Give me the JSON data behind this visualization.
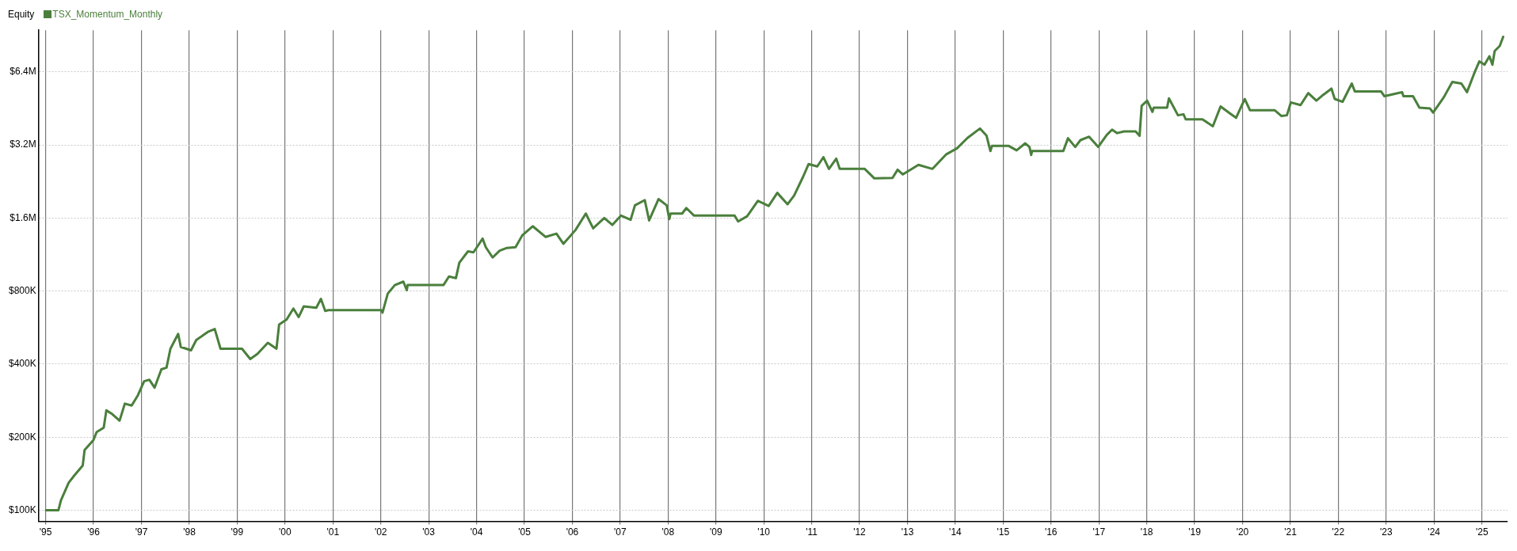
{
  "chart_data": {
    "type": "line",
    "ylabel": "Equity",
    "legend": "top left",
    "grid": true,
    "log": "y",
    "marker": "none",
    "line_style": "solid",
    "xlim": [
      "1994-11-08",
      "2025-07-15"
    ],
    "xticks": [
      {
        "value": "1995",
        "label": "'95"
      },
      {
        "value": "1996",
        "label": "'96"
      },
      {
        "value": "1997",
        "label": "'97"
      },
      {
        "value": "1998",
        "label": "'98"
      },
      {
        "value": "1999",
        "label": "'99"
      },
      {
        "value": "2000",
        "label": "'00"
      },
      {
        "value": "2001",
        "label": "'01"
      },
      {
        "value": "2002",
        "label": "'02"
      },
      {
        "value": "2003",
        "label": "'03"
      },
      {
        "value": "2004",
        "label": "'04"
      },
      {
        "value": "2005",
        "label": "'05"
      },
      {
        "value": "2006",
        "label": "'06"
      },
      {
        "value": "2007",
        "label": "'07"
      },
      {
        "value": "2008",
        "label": "'08"
      },
      {
        "value": "2009",
        "label": "'09"
      },
      {
        "value": "2010",
        "label": "'10"
      },
      {
        "value": "2011",
        "label": "'11"
      },
      {
        "value": "2012",
        "label": "'12"
      },
      {
        "value": "2013",
        "label": "'13"
      },
      {
        "value": "2014",
        "label": "'14"
      },
      {
        "value": "2015",
        "label": "'15"
      },
      {
        "value": "2016",
        "label": "'16"
      },
      {
        "value": "2017",
        "label": "'17"
      },
      {
        "value": "2018",
        "label": "'18"
      },
      {
        "value": "2019",
        "label": "'19"
      },
      {
        "value": "2020",
        "label": "'20"
      },
      {
        "value": "2021",
        "label": "'21"
      },
      {
        "value": "2022",
        "label": "'22"
      },
      {
        "value": "2023",
        "label": "'23"
      },
      {
        "value": "2024",
        "label": "'24"
      },
      {
        "value": "2025",
        "label": "'25"
      }
    ],
    "ylim": [
      90000,
      9500000
    ],
    "yticks": [
      {
        "value": 100000,
        "label": "$100K"
      },
      {
        "value": 200000,
        "label": "$200K"
      },
      {
        "value": 400000,
        "label": "$400K"
      },
      {
        "value": 800000,
        "label": "$800K"
      },
      {
        "value": 1600000,
        "label": "$1.6M"
      },
      {
        "value": 3200000,
        "label": "$3.2M"
      },
      {
        "value": 6400000,
        "label": "$6.4M"
      }
    ],
    "series": [
      {
        "name": "TSX_Momentum_Monthly",
        "color": "#4a7f3c",
        "x": [
          "1995-01-04",
          "1995-04-08",
          "1995-04-28",
          "1995-06-26",
          "1995-08-07",
          "1995-10-11",
          "1995-10-25",
          "1996-01-01",
          "1996-01-25",
          "1996-03-19",
          "1996-04-08",
          "1996-05-23",
          "1996-07-18",
          "1996-08-27",
          "1996-10-18",
          "1996-12-05",
          "1997-01-21",
          "1997-03-02",
          "1997-04-11",
          "1997-06-02",
          "1997-07-11",
          "1997-08-10",
          "1997-10-08",
          "1997-10-28",
          "1998-01-14",
          "1998-02-23",
          "1998-05-27",
          "1998-07-14",
          "1998-08-27",
          "1999-02-07",
          "1999-04-11",
          "1999-06-05",
          "1999-08-23",
          "1999-10-28",
          "1999-11-17",
          "2000-01-14",
          "2000-03-05",
          "2000-04-14",
          "2000-05-23",
          "2000-08-27",
          "2000-10-01",
          "2000-11-03",
          "2000-11-27",
          "2002-01-04",
          "2002-01-14",
          "2002-02-23",
          "2002-04-18",
          "2002-06-22",
          "2002-07-18",
          "2002-07-25",
          "2003-04-24",
          "2003-06-05",
          "2003-07-28",
          "2003-08-23",
          "2003-10-28",
          "2003-12-09",
          "2004-02-17",
          "2004-03-12",
          "2004-05-03",
          "2004-06-26",
          "2004-08-20",
          "2004-10-25",
          "2004-12-16",
          "2005-03-05",
          "2005-06-12",
          "2005-09-02",
          "2005-10-25",
          "2006-01-25",
          "2006-04-14",
          "2006-06-09",
          "2006-09-02",
          "2006-11-03",
          "2007-01-08",
          "2007-03-22",
          "2007-04-24",
          "2007-07-08",
          "2007-08-10",
          "2007-10-21",
          "2007-12-22",
          "2008-01-11",
          "2008-01-21",
          "2008-04-18",
          "2008-05-20",
          "2008-07-18",
          "2009-05-23",
          "2009-06-19",
          "2009-08-27",
          "2009-11-17",
          "2010-02-07",
          "2010-04-14",
          "2010-07-01",
          "2010-08-20",
          "2010-10-28",
          "2010-12-09",
          "2011-02-13",
          "2011-04-01",
          "2011-05-13",
          "2011-07-08",
          "2011-08-03",
          "2012-02-10",
          "2012-04-24",
          "2012-09-09",
          "2012-10-18",
          "2012-11-27",
          "2013-03-26",
          "2013-07-11",
          "2013-10-25",
          "2014-01-14",
          "2014-04-04",
          "2014-07-08",
          "2014-08-27",
          "2014-09-26",
          "2014-10-08",
          "2015-02-13",
          "2015-04-14",
          "2015-06-19",
          "2015-07-21",
          "2015-08-03",
          "2015-08-10",
          "2016-04-04",
          "2016-05-10",
          "2016-07-04",
          "2016-08-13",
          "2016-10-18",
          "2016-12-26",
          "2017-03-02",
          "2017-04-11",
          "2017-05-20",
          "2017-07-11",
          "2017-10-08",
          "2017-11-07",
          "2017-11-23",
          "2018-01-04",
          "2018-02-13",
          "2018-02-23",
          "2018-06-05",
          "2018-06-19",
          "2018-08-27",
          "2018-10-08",
          "2018-10-25",
          "2019-03-02",
          "2019-05-20",
          "2019-07-18",
          "2019-09-19",
          "2019-11-13",
          "2020-01-18",
          "2020-02-27",
          "2020-09-02",
          "2020-10-25",
          "2020-12-05",
          "2021-01-04",
          "2021-03-19",
          "2021-05-17",
          "2021-07-18",
          "2021-09-09",
          "2021-11-10",
          "2021-12-05",
          "2022-02-03",
          "2022-04-14",
          "2022-05-07",
          "2022-11-23",
          "2022-12-19",
          "2023-03-09",
          "2023-05-03",
          "2023-05-13",
          "2023-07-25",
          "2023-09-12",
          "2023-12-02",
          "2023-12-26",
          "2024-03-16",
          "2024-05-20",
          "2024-07-28",
          "2024-09-09",
          "2024-11-03",
          "2024-12-12",
          "2025-01-21",
          "2025-02-27",
          "2025-03-22",
          "2025-04-08",
          "2025-05-17",
          "2025-06-12"
        ],
        "values": [
          100000,
          100000,
          110000,
          130000,
          139000,
          153000,
          177000,
          195000,
          210000,
          219000,
          258000,
          249000,
          234000,
          275000,
          270000,
          298000,
          340000,
          345000,
          320000,
          381000,
          387000,
          463000,
          533000,
          471000,
          456000,
          503000,
          545000,
          558000,
          463000,
          463000,
          420000,
          441000,
          490000,
          463000,
          582000,
          611000,
          678000,
          625000,
          692000,
          683000,
          743000,
          663000,
          668000,
          668000,
          652000,
          781000,
          847000,
          875000,
          807000,
          847000,
          847000,
          919000,
          904000,
          1047000,
          1166000,
          1155000,
          1316000,
          1213000,
          1100000,
          1174000,
          1205000,
          1213000,
          1359000,
          1480000,
          1337000,
          1380000,
          1253000,
          1427000,
          1669000,
          1451000,
          1600000,
          1499000,
          1637000,
          1573000,
          1805000,
          1896000,
          1564000,
          1915000,
          1805000,
          1584000,
          1669000,
          1669000,
          1759000,
          1637000,
          1637000,
          1549000,
          1627000,
          1883000,
          1793000,
          2031000,
          1823000,
          1978000,
          2367000,
          2670000,
          2610000,
          2850000,
          2550000,
          2810000,
          2550000,
          2550000,
          2330000,
          2340000,
          2530000,
          2420000,
          2650000,
          2550000,
          2930000,
          3100000,
          3420000,
          3740000,
          3500000,
          3020000,
          3170000,
          3170000,
          3040000,
          3250000,
          3140000,
          2910000,
          3020000,
          3020000,
          3410000,
          3140000,
          3350000,
          3460000,
          3140000,
          3520000,
          3700000,
          3580000,
          3640000,
          3640000,
          3490000,
          4640000,
          4870000,
          4380000,
          4560000,
          4560000,
          4980000,
          4240000,
          4280000,
          4080000,
          4080000,
          3820000,
          4610000,
          4350000,
          4140000,
          4950000,
          4450000,
          4450000,
          4210000,
          4240000,
          4790000,
          4670000,
          5230000,
          4870000,
          5150000,
          5460000,
          4950000,
          4820000,
          5730000,
          5320000,
          5320000,
          5080000,
          5200000,
          5280000,
          5080000,
          5080000,
          4560000,
          4520000,
          4350000,
          5030000,
          5820000,
          5730000,
          5280000,
          6310000,
          7070000,
          6850000,
          7420000,
          6850000,
          7800000,
          8190000,
          8930000
        ]
      }
    ]
  }
}
